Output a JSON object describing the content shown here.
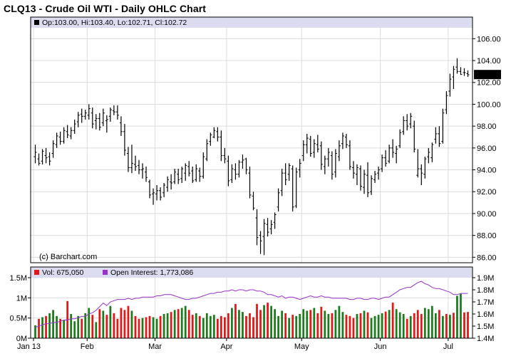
{
  "title": "CLQ13 - Crude Oil WTI - Daily OHLC Chart",
  "colors": {
    "header_band": "#dcdcf0",
    "grid": "#dcdcdc",
    "frame": "#000000",
    "ohlc": "#000000",
    "vol_up": "#1e7a1e",
    "vol_down": "#e01818",
    "open_interest": "#9932cc",
    "last_box": "#000000",
    "last_text": "#ffffff",
    "legend_marker_price": "#000000"
  },
  "info": {
    "open_label": "Op:",
    "open": "103.00",
    "high_label": "Hi:",
    "high": "103.40",
    "low_label": "Lo:",
    "low": "102.71",
    "close_label": "Cl:",
    "close": "102.72"
  },
  "watermark": "(c) Barchart.com",
  "volume_legend": {
    "vol_label": "Vol:",
    "vol_value": "675,050",
    "oi_label": "Open Interest:",
    "oi_value": "1,773,086"
  },
  "chart_data": {
    "type": "ohlc",
    "price_axis": {
      "ylim": [
        85.5,
        107.0
      ],
      "ticks": [
        "86.00",
        "88.00",
        "90.00",
        "92.00",
        "94.00",
        "96.00",
        "98.00",
        "100.00",
        "102.00",
        "104.00",
        "106.00"
      ],
      "last_value": "102.72"
    },
    "volume_axis": {
      "ylim": [
        0,
        1.5
      ],
      "ticks": [
        "0M",
        "0.5M",
        "1M",
        "1.5M"
      ]
    },
    "open_interest_axis": {
      "ylim": [
        1.4,
        1.9
      ],
      "ticks": [
        "1.4M",
        "1.5M",
        "1.6M",
        "1.7M",
        "1.8M",
        "1.9M"
      ]
    },
    "x_labels": [
      {
        "label": "Jan 13",
        "index": 0
      },
      {
        "label": "Feb",
        "index": 15
      },
      {
        "label": "Mar",
        "index": 34
      },
      {
        "label": "Apr",
        "index": 54
      },
      {
        "label": "May",
        "index": 75
      },
      {
        "label": "Jun",
        "index": 97
      },
      {
        "label": "Jul",
        "index": 116
      }
    ],
    "n_bars": 122,
    "ohlc": [
      [
        95.2,
        96.3,
        94.6,
        95.6
      ],
      [
        95.0,
        95.5,
        94.4,
        94.6
      ],
      [
        94.8,
        95.9,
        94.5,
        95.7
      ],
      [
        95.3,
        96.0,
        94.6,
        95.1
      ],
      [
        95.2,
        95.6,
        94.4,
        94.8
      ],
      [
        95.5,
        96.7,
        95.1,
        96.4
      ],
      [
        96.3,
        97.4,
        96.0,
        97.1
      ],
      [
        97.0,
        97.5,
        96.3,
        96.6
      ],
      [
        96.6,
        97.9,
        96.4,
        97.6
      ],
      [
        97.5,
        98.1,
        96.9,
        97.2
      ],
      [
        97.1,
        97.9,
        96.8,
        97.6
      ],
      [
        97.6,
        98.6,
        97.3,
        98.2
      ],
      [
        98.4,
        99.3,
        97.9,
        99.0
      ],
      [
        99.1,
        99.6,
        98.3,
        98.9
      ],
      [
        98.9,
        99.5,
        98.6,
        99.2
      ],
      [
        99.0,
        100.0,
        98.6,
        99.6
      ],
      [
        99.2,
        99.7,
        97.8,
        98.2
      ],
      [
        98.5,
        99.1,
        97.7,
        98.7
      ],
      [
        98.7,
        99.2,
        97.6,
        97.9
      ],
      [
        98.3,
        99.6,
        98.0,
        99.2
      ],
      [
        98.5,
        99.0,
        97.4,
        98.6
      ],
      [
        98.9,
        99.7,
        98.4,
        99.5
      ],
      [
        99.4,
        99.9,
        99.0,
        99.3
      ],
      [
        99.3,
        99.9,
        98.6,
        99.0
      ],
      [
        98.3,
        98.9,
        97.1,
        97.5
      ],
      [
        97.5,
        98.2,
        95.3,
        95.8
      ],
      [
        95.5,
        96.1,
        93.8,
        94.2
      ],
      [
        94.2,
        96.3,
        93.7,
        94.6
      ],
      [
        94.5,
        95.3,
        93.9,
        94.3
      ],
      [
        94.4,
        94.9,
        93.6,
        94.0
      ],
      [
        94.0,
        94.6,
        93.2,
        94.1
      ],
      [
        93.8,
        94.3,
        92.9,
        93.3
      ],
      [
        92.9,
        93.1,
        91.4,
        91.7
      ],
      [
        91.8,
        92.3,
        90.8,
        91.9
      ],
      [
        91.8,
        92.6,
        91.2,
        92.1
      ],
      [
        92.1,
        92.4,
        91.2,
        91.5
      ],
      [
        91.9,
        92.8,
        91.5,
        92.6
      ],
      [
        92.4,
        93.4,
        92.0,
        93.1
      ],
      [
        92.9,
        93.6,
        92.2,
        92.8
      ],
      [
        92.9,
        94.1,
        92.7,
        93.8
      ],
      [
        93.6,
        94.1,
        92.7,
        93.1
      ],
      [
        93.2,
        94.3,
        92.8,
        94.1
      ],
      [
        93.7,
        94.6,
        93.0,
        94.4
      ],
      [
        94.3,
        94.8,
        93.4,
        93.7
      ],
      [
        93.9,
        94.3,
        92.8,
        93.0
      ],
      [
        93.1,
        94.5,
        92.9,
        94.1
      ],
      [
        93.9,
        94.2,
        92.9,
        93.4
      ],
      [
        93.4,
        95.6,
        93.2,
        95.2
      ],
      [
        95.0,
        96.8,
        94.8,
        96.4
      ],
      [
        96.6,
        97.4,
        96.2,
        97.2
      ],
      [
        97.0,
        97.9,
        96.9,
        97.6
      ],
      [
        97.5,
        97.9,
        96.6,
        97.0
      ],
      [
        97.0,
        97.6,
        94.8,
        95.3
      ],
      [
        95.3,
        96.0,
        94.6,
        95.0
      ],
      [
        94.8,
        95.3,
        92.5,
        93.0
      ],
      [
        93.1,
        94.5,
        92.8,
        94.1
      ],
      [
        94.0,
        94.6,
        93.1,
        93.6
      ],
      [
        93.6,
        94.9,
        93.3,
        94.7
      ],
      [
        94.7,
        95.4,
        94.1,
        94.9
      ],
      [
        95.0,
        95.1,
        93.6,
        94.0
      ],
      [
        93.7,
        94.3,
        91.4,
        91.7
      ],
      [
        91.6,
        92.0,
        90.3,
        90.5
      ],
      [
        89.6,
        90.4,
        87.1,
        87.8
      ],
      [
        88.0,
        88.4,
        86.3,
        87.5
      ],
      [
        87.9,
        89.5,
        86.2,
        89.1
      ],
      [
        89.0,
        89.6,
        87.9,
        88.3
      ],
      [
        88.6,
        89.4,
        88.1,
        89.0
      ],
      [
        89.2,
        90.1,
        88.6,
        89.9
      ],
      [
        90.6,
        92.3,
        90.2,
        91.9
      ],
      [
        92.1,
        94.1,
        91.6,
        93.7
      ],
      [
        93.7,
        94.6,
        92.6,
        93.1
      ],
      [
        93.6,
        94.6,
        93.0,
        94.4
      ],
      [
        94.1,
        94.4,
        90.2,
        90.6
      ],
      [
        90.7,
        94.2,
        90.5,
        93.8
      ],
      [
        94.0,
        95.0,
        93.3,
        94.6
      ],
      [
        95.3,
        96.7,
        94.8,
        96.3
      ],
      [
        96.3,
        97.3,
        95.5,
        96.9
      ],
      [
        96.8,
        97.1,
        95.2,
        95.5
      ],
      [
        95.6,
        96.8,
        95.1,
        96.4
      ],
      [
        96.3,
        97.2,
        95.6,
        95.9
      ],
      [
        96.2,
        96.6,
        94.0,
        94.5
      ],
      [
        94.3,
        95.3,
        93.6,
        95.0
      ],
      [
        95.0,
        96.0,
        94.3,
        95.6
      ],
      [
        95.3,
        95.7,
        93.1,
        93.6
      ],
      [
        93.8,
        95.9,
        93.3,
        95.5
      ],
      [
        95.2,
        96.7,
        94.8,
        96.2
      ],
      [
        96.4,
        97.4,
        95.9,
        97.1
      ],
      [
        97.0,
        97.3,
        96.0,
        96.3
      ],
      [
        96.2,
        96.7,
        94.0,
        94.3
      ],
      [
        94.2,
        94.8,
        93.2,
        93.7
      ],
      [
        93.6,
        94.5,
        92.6,
        94.2
      ],
      [
        94.1,
        94.4,
        92.1,
        92.5
      ],
      [
        92.4,
        94.0,
        91.8,
        93.6
      ],
      [
        93.5,
        94.7,
        91.5,
        91.9
      ],
      [
        92.0,
        93.5,
        91.7,
        93.2
      ],
      [
        93.1,
        93.9,
        92.8,
        93.6
      ],
      [
        93.7,
        94.3,
        93.1,
        94.0
      ],
      [
        94.1,
        95.4,
        93.8,
        95.1
      ],
      [
        95.1,
        95.8,
        94.3,
        94.6
      ],
      [
        94.8,
        96.3,
        94.6,
        96.0
      ],
      [
        96.0,
        96.8,
        95.1,
        95.6
      ],
      [
        95.5,
        96.2,
        94.6,
        95.9
      ],
      [
        96.2,
        97.7,
        96.0,
        97.4
      ],
      [
        97.5,
        98.9,
        97.2,
        98.5
      ],
      [
        98.5,
        99.1,
        97.6,
        98.0
      ],
      [
        98.2,
        99.2,
        97.8,
        98.9
      ],
      [
        98.0,
        98.5,
        95.6,
        95.9
      ],
      [
        93.5,
        95.9,
        93.3,
        94.1
      ],
      [
        94.1,
        94.5,
        92.6,
        93.7
      ],
      [
        93.6,
        95.2,
        93.2,
        95.0
      ],
      [
        95.2,
        96.0,
        94.6,
        95.6
      ],
      [
        95.1,
        96.5,
        94.7,
        96.3
      ],
      [
        96.8,
        97.9,
        96.4,
        97.3
      ],
      [
        97.3,
        98.0,
        96.1,
        96.4
      ],
      [
        96.6,
        99.6,
        96.4,
        99.2
      ],
      [
        99.5,
        101.2,
        99.1,
        100.8
      ],
      [
        101.2,
        102.8,
        100.7,
        102.3
      ],
      [
        102.5,
        103.5,
        101.4,
        103.2
      ],
      [
        103.4,
        104.2,
        102.8,
        103.0
      ],
      [
        103.0,
        103.4,
        102.7,
        102.72
      ],
      [
        102.9,
        103.3,
        102.6,
        102.9
      ],
      [
        102.8,
        103.1,
        102.5,
        102.7
      ]
    ],
    "volume": [
      0.32,
      0.48,
      0.52,
      0.55,
      0.62,
      0.7,
      0.55,
      0.48,
      0.45,
      0.92,
      0.6,
      0.42,
      0.55,
      0.48,
      0.62,
      0.75,
      0.58,
      0.4,
      0.72,
      0.68,
      0.58,
      0.8,
      0.62,
      0.48,
      0.75,
      0.7,
      0.8,
      0.68,
      0.55,
      0.48,
      0.5,
      0.52,
      0.55,
      0.52,
      0.48,
      0.55,
      0.6,
      0.62,
      0.65,
      0.7,
      0.72,
      0.75,
      0.8,
      0.7,
      0.58,
      0.62,
      0.55,
      0.5,
      0.62,
      0.55,
      0.58,
      0.48,
      0.55,
      0.52,
      0.62,
      0.75,
      0.85,
      0.7,
      0.65,
      0.55,
      0.62,
      0.52,
      0.85,
      0.7,
      0.82,
      0.88,
      0.8,
      0.72,
      0.55,
      0.68,
      0.62,
      0.5,
      0.58,
      0.55,
      0.6,
      0.72,
      0.68,
      0.7,
      0.75,
      0.62,
      0.78,
      0.68,
      0.6,
      0.62,
      0.7,
      0.8,
      0.65,
      0.58,
      0.55,
      0.5,
      0.6,
      0.62,
      0.68,
      0.64,
      0.5,
      0.55,
      0.58,
      0.62,
      0.66,
      0.7,
      0.88,
      0.72,
      0.64,
      0.6,
      0.48,
      0.55,
      0.62,
      0.7,
      0.6,
      0.75,
      0.72,
      0.8,
      0.62,
      0.7,
      0.55,
      0.6,
      0.58,
      0.63,
      1.05,
      1.1,
      0.64,
      0.65
    ],
    "volume_up": [
      true,
      false,
      true,
      false,
      true,
      true,
      true,
      false,
      true,
      false,
      true,
      true,
      true,
      false,
      true,
      true,
      false,
      true,
      false,
      true,
      false,
      true,
      false,
      false,
      false,
      false,
      false,
      true,
      false,
      false,
      true,
      false,
      false,
      true,
      true,
      false,
      true,
      true,
      false,
      true,
      false,
      true,
      true,
      false,
      false,
      true,
      false,
      true,
      true,
      true,
      true,
      false,
      false,
      false,
      false,
      true,
      false,
      true,
      true,
      false,
      false,
      false,
      false,
      false,
      true,
      false,
      true,
      true,
      true,
      true,
      false,
      true,
      false,
      true,
      true,
      true,
      true,
      false,
      true,
      false,
      false,
      true,
      true,
      false,
      true,
      true,
      true,
      false,
      false,
      false,
      true,
      false,
      true,
      false,
      true,
      true,
      true,
      true,
      false,
      true,
      false,
      true,
      true,
      true,
      false,
      true,
      false,
      false,
      false,
      true,
      true,
      true,
      true,
      false,
      true,
      false,
      true,
      false,
      true,
      true,
      false,
      false
    ],
    "open_interest": [
      1.49,
      1.5,
      1.51,
      1.52,
      1.52,
      1.53,
      1.53,
      1.54,
      1.55,
      1.55,
      1.56,
      1.56,
      1.57,
      1.58,
      1.58,
      1.6,
      1.61,
      1.63,
      1.66,
      1.69,
      1.67,
      1.7,
      1.71,
      1.72,
      1.72,
      1.72,
      1.73,
      1.72,
      1.73,
      1.73,
      1.74,
      1.74,
      1.74,
      1.74,
      1.75,
      1.75,
      1.76,
      1.76,
      1.76,
      1.75,
      1.74,
      1.73,
      1.72,
      1.72,
      1.73,
      1.73,
      1.74,
      1.75,
      1.76,
      1.77,
      1.77,
      1.78,
      1.78,
      1.79,
      1.79,
      1.8,
      1.79,
      1.8,
      1.8,
      1.79,
      1.8,
      1.8,
      1.79,
      1.79,
      1.78,
      1.76,
      1.76,
      1.75,
      1.74,
      1.75,
      1.73,
      1.74,
      1.74,
      1.73,
      1.72,
      1.73,
      1.74,
      1.75,
      1.74,
      1.74,
      1.75,
      1.74,
      1.74,
      1.73,
      1.73,
      1.73,
      1.73,
      1.73,
      1.72,
      1.72,
      1.73,
      1.73,
      1.72,
      1.72,
      1.73,
      1.73,
      1.72,
      1.73,
      1.74,
      1.74,
      1.76,
      1.78,
      1.8,
      1.81,
      1.82,
      1.82,
      1.84,
      1.86,
      1.87,
      1.85,
      1.84,
      1.82,
      1.81,
      1.81,
      1.8,
      1.79,
      1.78,
      1.76,
      1.76,
      1.77,
      1.77,
      1.77
    ]
  }
}
